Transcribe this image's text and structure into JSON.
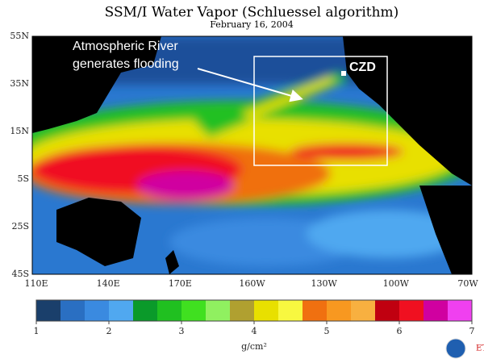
{
  "title": "SSM/I Water Vapor (Schluessel algorithm)",
  "subtitle": "February 16, 2004",
  "annotation": [
    "Atmospheric River",
    "generates flooding"
  ],
  "site_label": "CZD",
  "lat_labels": [
    "55N",
    "35N",
    "15N",
    "5S",
    "25S",
    "45S"
  ],
  "lon_labels": [
    "110E",
    "140E",
    "170E",
    "160W",
    "130W",
    "100W",
    "70W"
  ],
  "colorbar": {
    "range": [
      1,
      7
    ],
    "ticks": [
      1,
      2,
      3,
      4,
      5,
      6,
      7
    ],
    "label": "g/cm²",
    "colors": [
      "#1a3f6b",
      "#2a6fc2",
      "#3a8ae0",
      "#50a8f0",
      "#0a9a2a",
      "#20c020",
      "#40e020",
      "#90f060",
      "#b0a030",
      "#e8e000",
      "#f8f840",
      "#f07010",
      "#f89820",
      "#f8b040",
      "#c00010",
      "#f01020",
      "#d000a0",
      "#f040f0"
    ]
  },
  "logo_text": "ETL"
}
